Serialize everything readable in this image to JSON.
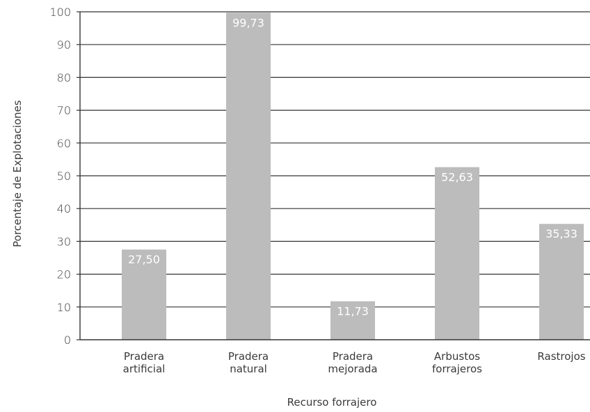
{
  "chart_data": {
    "type": "bar",
    "categories": [
      [
        "Pradera",
        "artificial"
      ],
      [
        "Pradera",
        "natural"
      ],
      [
        "Pradera",
        "mejorada"
      ],
      [
        "Arbustos",
        "forrajeros"
      ],
      [
        "Rastrojos"
      ]
    ],
    "values": [
      27.5,
      99.73,
      11.73,
      52.63,
      35.33
    ],
    "data_labels": [
      "27,50",
      "99,73",
      "11,73",
      "52,63",
      "35,33"
    ],
    "xlabel": "Recurso forrajero",
    "ylabel": "Porcentaje de Explotaciones",
    "ylim": [
      0,
      100
    ],
    "yticks": [
      0,
      10,
      20,
      30,
      40,
      50,
      60,
      70,
      80,
      90,
      100
    ],
    "grid": true,
    "legend": "none",
    "colors": {
      "bar": "#bcbcbc",
      "grid": "#333333",
      "text": "#3a3a3a",
      "data_label": "#ffffff"
    }
  }
}
